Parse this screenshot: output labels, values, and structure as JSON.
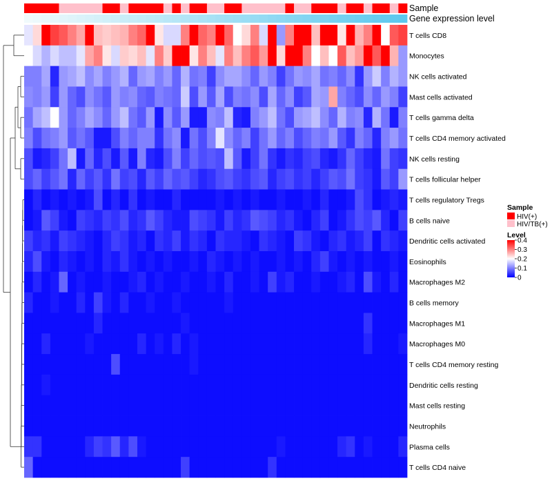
{
  "chart_data": {
    "type": "heatmap",
    "annotation_tracks": [
      {
        "name": "Sample"
      },
      {
        "name": "Gene expression level"
      }
    ],
    "rows": [
      "T cells CD8",
      "Monocytes",
      "NK cells activated",
      "Mast cells activated",
      "T cells gamma delta",
      "T cells CD4 memory activated",
      "NK cells resting",
      "T cells follicular helper",
      "T cells regulatory  Tregs",
      "B cells naive",
      "Dendritic cells activated",
      "Eosinophils",
      "Macrophages M2",
      "B cells memory",
      "Macrophages M1",
      "Macrophages M0",
      "T cells CD4 memory resting",
      "Dendritic cells resting",
      "Mast cells resting",
      "Neutrophils",
      "Plasma cells",
      "T cells CD4 naive"
    ],
    "n_samples": 44,
    "sample_groups": [
      "HIV(+)",
      "HIV(+)",
      "HIV(+)",
      "HIV(+)",
      "HIV/TB(+)",
      "HIV/TB(+)",
      "HIV/TB(+)",
      "HIV/TB(+)",
      "HIV/TB(+)",
      "HIV(+)",
      "HIV(+)",
      "HIV/TB(+)",
      "HIV(+)",
      "HIV(+)",
      "HIV(+)",
      "HIV(+)",
      "HIV/TB(+)",
      "HIV(+)",
      "HIV/TB(+)",
      "HIV(+)",
      "HIV(+)",
      "HIV/TB(+)",
      "HIV/TB(+)",
      "HIV(+)",
      "HIV(+)",
      "HIV/TB(+)",
      "HIV/TB(+)",
      "HIV/TB(+)",
      "HIV/TB(+)",
      "HIV/TB(+)",
      "HIV(+)",
      "HIV/TB(+)",
      "HIV/TB(+)",
      "HIV(+)",
      "HIV(+)",
      "HIV(+)",
      "HIV/TB(+)",
      "HIV(+)",
      "HIV(+)",
      "HIV/TB(+)",
      "HIV(+)",
      "HIV(+)",
      "HIV/TB(+)",
      "HIV(+)"
    ],
    "expression_gradient": {
      "from": "#f0fafc",
      "to": "#5dc8ee"
    },
    "values": [
      [
        0.18,
        0.23,
        0.4,
        0.35,
        0.33,
        0.3,
        0.27,
        0.4,
        0.25,
        0.24,
        0.25,
        0.26,
        0.3,
        0.32,
        0.4,
        0.22,
        0.17,
        0.17,
        0.3,
        0.4,
        0.32,
        0.3,
        0.4,
        0.32,
        0.2,
        0.23,
        0.3,
        0.17,
        0.4,
        0.12,
        0.3,
        0.4,
        0.4,
        0.25,
        0.4,
        0.4,
        0.22,
        0.4,
        0.26,
        0.3,
        0.4,
        0.2,
        0.33,
        0.35
      ],
      [
        0.2,
        0.17,
        0.14,
        0.17,
        0.15,
        0.15,
        0.18,
        0.27,
        0.3,
        0.22,
        0.17,
        0.24,
        0.23,
        0.25,
        0.18,
        0.3,
        0.24,
        0.4,
        0.4,
        0.22,
        0.3,
        0.25,
        0.18,
        0.3,
        0.25,
        0.3,
        0.33,
        0.28,
        0.4,
        0.23,
        0.4,
        0.4,
        0.3,
        0.2,
        0.25,
        0.2,
        0.33,
        0.25,
        0.28,
        0.4,
        0.33,
        0.4,
        0.26,
        0.12
      ],
      [
        0.1,
        0.1,
        0.13,
        0.03,
        0.12,
        0.13,
        0.15,
        0.11,
        0.13,
        0.1,
        0.12,
        0.14,
        0.08,
        0.12,
        0.13,
        0.1,
        0.12,
        0.08,
        0.14,
        0.09,
        0.1,
        0.05,
        0.11,
        0.13,
        0.13,
        0.11,
        0.08,
        0.12,
        0.1,
        0.05,
        0.09,
        0.12,
        0.11,
        0.13,
        0.09,
        0.1,
        0.08,
        0.11,
        0.04,
        0.12,
        0.16,
        0.1,
        0.14,
        0.12
      ],
      [
        0.11,
        0.1,
        0.12,
        0.05,
        0.12,
        0.08,
        0.06,
        0.11,
        0.09,
        0.07,
        0.12,
        0.1,
        0.11,
        0.08,
        0.07,
        0.1,
        0.09,
        0.08,
        0.16,
        0.06,
        0.12,
        0.07,
        0.13,
        0.06,
        0.1,
        0.09,
        0.11,
        0.06,
        0.13,
        0.08,
        0.11,
        0.05,
        0.07,
        0.13,
        0.12,
        0.27,
        0.1,
        0.08,
        0.06,
        0.11,
        0.08,
        0.12,
        0.1,
        0.05
      ],
      [
        0.09,
        0.13,
        0.15,
        0.2,
        0.12,
        0.08,
        0.1,
        0.13,
        0.11,
        0.08,
        0.12,
        0.15,
        0.09,
        0.07,
        0.12,
        0.02,
        0.11,
        0.07,
        0.12,
        0.02,
        0.02,
        0.11,
        0.1,
        0.15,
        0.03,
        0.02,
        0.1,
        0.12,
        0.15,
        0.09,
        0.06,
        0.12,
        0.13,
        0.15,
        0.11,
        0.08,
        0.14,
        0.1,
        0.11,
        0.03,
        0.14,
        0.09,
        0.02,
        0.1
      ],
      [
        0.1,
        0.06,
        0.09,
        0.1,
        0.12,
        0.07,
        0.09,
        0.07,
        0.02,
        0.02,
        0.06,
        0.1,
        0.08,
        0.1,
        0.1,
        0.04,
        0.09,
        0.11,
        0.02,
        0.09,
        0.06,
        0.1,
        0.18,
        0.11,
        0.08,
        0.1,
        0.05,
        0.09,
        0.12,
        0.08,
        0.1,
        0.06,
        0.08,
        0.1,
        0.09,
        0.12,
        0.07,
        0.04,
        0.1,
        0.08,
        0.03,
        0.1,
        0.12,
        0.09
      ],
      [
        0.06,
        0.02,
        0.03,
        0.05,
        0.09,
        0.15,
        0.02,
        0.08,
        0.03,
        0.06,
        0.02,
        0.07,
        0.02,
        0.1,
        0.03,
        0.02,
        0.06,
        0.1,
        0.05,
        0.08,
        0.06,
        0.07,
        0.06,
        0.15,
        0.07,
        0.02,
        0.05,
        0.09,
        0.04,
        0.02,
        0.04,
        0.03,
        0.05,
        0.06,
        0.03,
        0.02,
        0.04,
        0.08,
        0.05,
        0.03,
        0.02,
        0.09,
        0.05,
        0.04
      ],
      [
        0.06,
        0.08,
        0.05,
        0.07,
        0.09,
        0.03,
        0.08,
        0.05,
        0.07,
        0.04,
        0.09,
        0.05,
        0.06,
        0.03,
        0.07,
        0.05,
        0.08,
        0.06,
        0.07,
        0.05,
        0.03,
        0.04,
        0.06,
        0.07,
        0.05,
        0.04,
        0.06,
        0.07,
        0.03,
        0.05,
        0.06,
        0.04,
        0.05,
        0.03,
        0.05,
        0.07,
        0.06,
        0.09,
        0.05,
        0.04,
        0.02,
        0.07,
        0.05,
        0.12
      ],
      [
        0.01,
        0.03,
        0.01,
        0.02,
        0.01,
        0.02,
        0.01,
        0.02,
        0.06,
        0.01,
        0.03,
        0.01,
        0.04,
        0.01,
        0.02,
        0.01,
        0.01,
        0.03,
        0.01,
        0.01,
        0.01,
        0.01,
        0.02,
        0.01,
        0.02,
        0.01,
        0.02,
        0.01,
        0.01,
        0.02,
        0.01,
        0.01,
        0.02,
        0.01,
        0.03,
        0.01,
        0.01,
        0.02,
        0.06,
        0.04,
        0.01,
        0.02,
        0.03,
        0.02
      ],
      [
        0.01,
        0.02,
        0.07,
        0.05,
        0.02,
        0.01,
        0.05,
        0.04,
        0.03,
        0.05,
        0.04,
        0.06,
        0.03,
        0.04,
        0.07,
        0.05,
        0.03,
        0.02,
        0.02,
        0.06,
        0.05,
        0.04,
        0.02,
        0.05,
        0.03,
        0.04,
        0.07,
        0.06,
        0.05,
        0.03,
        0.04,
        0.02,
        0.01,
        0.03,
        0.05,
        0.01,
        0.02,
        0.04,
        0.06,
        0.05,
        0.07,
        0.03,
        0.01,
        0.05
      ],
      [
        0.05,
        0.03,
        0.04,
        0.02,
        0.05,
        0.04,
        0.03,
        0.02,
        0.01,
        0.03,
        0.05,
        0.04,
        0.02,
        0.03,
        0.01,
        0.04,
        0.03,
        0.05,
        0.02,
        0.04,
        0.03,
        0.01,
        0.04,
        0.03,
        0.03,
        0.02,
        0.01,
        0.04,
        0.03,
        0.02,
        0.01,
        0.05,
        0.04,
        0.02,
        0.01,
        0.03,
        0.04,
        0.02,
        0.03,
        0.05,
        0.01,
        0.04,
        0.03,
        0.02
      ],
      [
        0.03,
        0.06,
        0.02,
        0.01,
        0.03,
        0.02,
        0.01,
        0.02,
        0.01,
        0.03,
        0.02,
        0.04,
        0.02,
        0.01,
        0.02,
        0.01,
        0.02,
        0.01,
        0.01,
        0.02,
        0.01,
        0.03,
        0.02,
        0.01,
        0.02,
        0.01,
        0.02,
        0.01,
        0.01,
        0.02,
        0.01,
        0.02,
        0.01,
        0.03,
        0.05,
        0.02,
        0.01,
        0.02,
        0.01,
        0.02,
        0.01,
        0.01,
        0.02,
        0.01
      ],
      [
        0.01,
        0.03,
        0.01,
        0.02,
        0.08,
        0.01,
        0.02,
        0.01,
        0.01,
        0.02,
        0.01,
        0.01,
        0.02,
        0.03,
        0.01,
        0.02,
        0.01,
        0.01,
        0.02,
        0.01,
        0.01,
        0.02,
        0.01,
        0.03,
        0.01,
        0.01,
        0.02,
        0.01,
        0.05,
        0.02,
        0.03,
        0.01,
        0.01,
        0.02,
        0.01,
        0.01,
        0.02,
        0.03,
        0.01,
        0.06,
        0.02,
        0.01,
        0.03,
        0.01
      ],
      [
        0.03,
        0.01,
        0.01,
        0.02,
        0.01,
        0.01,
        0.03,
        0.01,
        0.05,
        0.02,
        0.01,
        0.03,
        0.01,
        0.01,
        0.02,
        0.01,
        0.01,
        0.02,
        0.01,
        0.01,
        0.01,
        0.01,
        0.01,
        0.02,
        0.01,
        0.01,
        0.01,
        0.01,
        0.01,
        0.01,
        0.01,
        0.01,
        0.01,
        0.01,
        0.01,
        0.01,
        0.01,
        0.01,
        0.01,
        0.01,
        0.01,
        0.01,
        0.01,
        0.01
      ],
      [
        0.01,
        0.01,
        0.01,
        0.01,
        0.01,
        0.01,
        0.01,
        0.01,
        0.03,
        0.01,
        0.01,
        0.01,
        0.01,
        0.01,
        0.01,
        0.01,
        0.01,
        0.01,
        0.02,
        0.01,
        0.01,
        0.01,
        0.01,
        0.01,
        0.01,
        0.01,
        0.01,
        0.01,
        0.01,
        0.01,
        0.01,
        0.01,
        0.01,
        0.01,
        0.01,
        0.01,
        0.01,
        0.01,
        0.01,
        0.04,
        0.01,
        0.01,
        0.01,
        0.01
      ],
      [
        0.01,
        0.01,
        0.03,
        0.01,
        0.01,
        0.01,
        0.01,
        0.02,
        0.01,
        0.01,
        0.01,
        0.01,
        0.01,
        0.03,
        0.01,
        0.02,
        0.01,
        0.03,
        0.01,
        0.02,
        0.01,
        0.01,
        0.01,
        0.01,
        0.01,
        0.01,
        0.01,
        0.01,
        0.01,
        0.01,
        0.01,
        0.01,
        0.01,
        0.01,
        0.01,
        0.01,
        0.01,
        0.01,
        0.01,
        0.03,
        0.01,
        0.01,
        0.01,
        0.02
      ],
      [
        0.01,
        0.01,
        0.01,
        0.01,
        0.01,
        0.01,
        0.01,
        0.01,
        0.01,
        0.01,
        0.06,
        0.01,
        0.01,
        0.01,
        0.01,
        0.01,
        0.01,
        0.01,
        0.01,
        0.02,
        0.01,
        0.01,
        0.01,
        0.01,
        0.01,
        0.01,
        0.01,
        0.01,
        0.01,
        0.01,
        0.01,
        0.01,
        0.01,
        0.01,
        0.01,
        0.01,
        0.01,
        0.01,
        0.01,
        0.01,
        0.01,
        0.01,
        0.01,
        0.01
      ],
      [
        0.01,
        0.01,
        0.02,
        0.01,
        0.01,
        0.01,
        0.01,
        0.01,
        0.01,
        0.01,
        0.01,
        0.01,
        0.01,
        0.01,
        0.01,
        0.01,
        0.01,
        0.01,
        0.01,
        0.01,
        0.01,
        0.01,
        0.01,
        0.01,
        0.01,
        0.01,
        0.01,
        0.01,
        0.01,
        0.01,
        0.01,
        0.01,
        0.01,
        0.01,
        0.01,
        0.01,
        0.01,
        0.01,
        0.01,
        0.01,
        0.01,
        0.01,
        0.01,
        0.01
      ],
      [
        0.01,
        0.01,
        0.01,
        0.01,
        0.01,
        0.01,
        0.01,
        0.01,
        0.01,
        0.01,
        0.01,
        0.01,
        0.01,
        0.01,
        0.01,
        0.01,
        0.01,
        0.01,
        0.01,
        0.01,
        0.01,
        0.01,
        0.01,
        0.01,
        0.01,
        0.01,
        0.01,
        0.01,
        0.01,
        0.01,
        0.01,
        0.01,
        0.01,
        0.01,
        0.01,
        0.01,
        0.01,
        0.01,
        0.01,
        0.01,
        0.01,
        0.01,
        0.01,
        0.01
      ],
      [
        0.01,
        0.01,
        0.01,
        0.01,
        0.01,
        0.01,
        0.01,
        0.01,
        0.01,
        0.01,
        0.01,
        0.01,
        0.01,
        0.01,
        0.01,
        0.01,
        0.01,
        0.01,
        0.01,
        0.01,
        0.01,
        0.01,
        0.01,
        0.01,
        0.01,
        0.01,
        0.01,
        0.01,
        0.01,
        0.01,
        0.01,
        0.01,
        0.01,
        0.01,
        0.01,
        0.01,
        0.01,
        0.01,
        0.01,
        0.01,
        0.01,
        0.01,
        0.01,
        0.01
      ],
      [
        0.04,
        0.04,
        0.01,
        0.01,
        0.01,
        0.01,
        0.01,
        0.03,
        0.05,
        0.04,
        0.07,
        0.03,
        0.06,
        0.02,
        0.01,
        0.01,
        0.01,
        0.01,
        0.01,
        0.01,
        0.01,
        0.01,
        0.01,
        0.01,
        0.01,
        0.01,
        0.01,
        0.01,
        0.01,
        0.02,
        0.01,
        0.01,
        0.01,
        0.01,
        0.01,
        0.01,
        0.03,
        0.04,
        0.01,
        0.02,
        0.01,
        0.01,
        0.01,
        0.03
      ],
      [
        0.08,
        0.01,
        0.01,
        0.01,
        0.01,
        0.01,
        0.01,
        0.01,
        0.01,
        0.01,
        0.01,
        0.01,
        0.01,
        0.01,
        0.01,
        0.01,
        0.01,
        0.01,
        0.05,
        0.01,
        0.01,
        0.01,
        0.01,
        0.01,
        0.01,
        0.01,
        0.01,
        0.01,
        0.04,
        0.01,
        0.01,
        0.01,
        0.01,
        0.01,
        0.01,
        0.01,
        0.01,
        0.01,
        0.01,
        0.01,
        0.01,
        0.01,
        0.01,
        0.01
      ]
    ],
    "color_scale": {
      "min": 0,
      "max": 0.4,
      "low": "#0000ff",
      "mid": "#ffffff",
      "high": "#ff0000"
    },
    "legend": {
      "sample_title": "Sample",
      "sample_entries": [
        {
          "label": "HIV(+)",
          "color": "#ff0000"
        },
        {
          "label": "HIV/TB(+)",
          "color": "#ffc0cb"
        }
      ],
      "level_title": "Level",
      "level_ticks": [
        0.4,
        0.3,
        0.2,
        0.1,
        0
      ],
      "level_tick_labels": [
        "0.4",
        "0.3",
        "0.2",
        "0.1",
        "0"
      ],
      "placement": "right"
    }
  }
}
